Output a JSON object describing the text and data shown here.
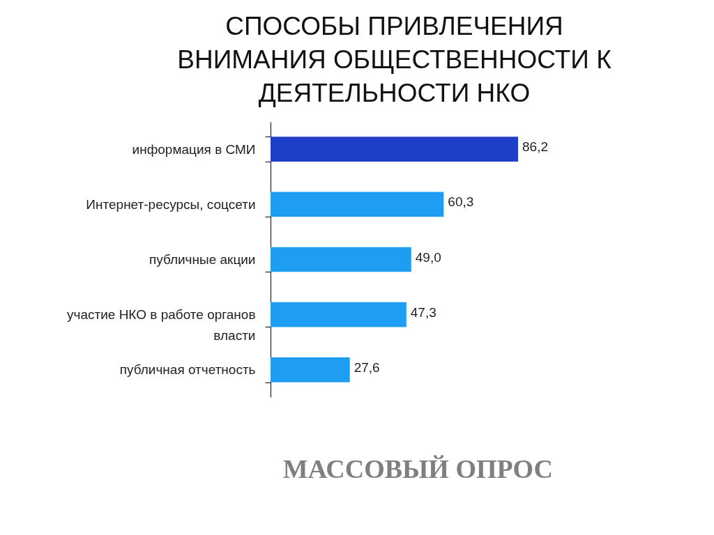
{
  "chart_data": {
    "type": "bar",
    "orientation": "horizontal",
    "title": "СПОСОБЫ ПРИВЛЕЧЕНИЯ\nВНИМАНИЯ ОБЩЕСТВЕННОСТИ К\nДЕЯТЕЛЬНОСТИ НКО",
    "categories": [
      "информация в СМИ",
      "Интернет-ресурсы, соцсети",
      "публичные акции",
      "участие НКО в работе органов\nвласти",
      "публичная отчетность"
    ],
    "values": [
      86.2,
      60.3,
      49.0,
      47.3,
      27.6
    ],
    "colors": [
      "#1f3fc8",
      "#1e9ef2",
      "#1e9ef2",
      "#1e9ef2",
      "#1e9ef2"
    ],
    "value_labels": [
      "86,2",
      "60,3",
      "49,0",
      "47,3",
      "27,6"
    ],
    "tick_labels": "y",
    "annotations": [
      "МАССОВЫЙ ОПРОС"
    ]
  }
}
